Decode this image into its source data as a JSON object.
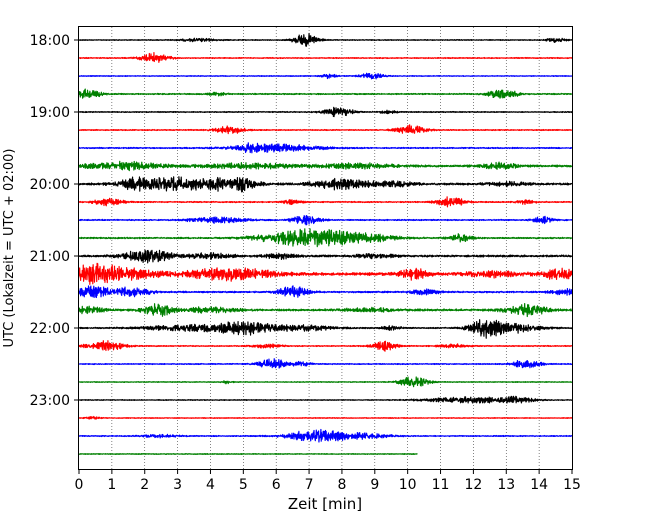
{
  "chart_data": {
    "type": "line",
    "subtype": "helicorder",
    "xlabel": "Zeit  [min]",
    "ylabel": "UTC (Lokalzeit = UTC + 02:00)",
    "xlim": [
      0,
      15
    ],
    "x_ticks": [
      0,
      1,
      2,
      3,
      4,
      5,
      6,
      7,
      8,
      9,
      10,
      11,
      12,
      13,
      14,
      15
    ],
    "x_gridlines": "dotted",
    "y_tick_labels": [
      "18:00",
      "19:00",
      "20:00",
      "21:00",
      "22:00",
      "23:00"
    ],
    "colors": [
      "#000000",
      "#ff0000",
      "#0000ff",
      "#008000"
    ],
    "rows": [
      {
        "time": "18:00",
        "color": "#000000",
        "base": 0.4,
        "end": 15,
        "bursts": [
          [
            6.9,
            0.25,
            7
          ],
          [
            3.6,
            0.4,
            1.5
          ],
          [
            14.5,
            0.2,
            2.5
          ]
        ]
      },
      {
        "time": "18:15",
        "color": "#ff0000",
        "base": 0.5,
        "end": 15,
        "bursts": [
          [
            2.3,
            0.3,
            5
          ]
        ]
      },
      {
        "time": "18:30",
        "color": "#0000ff",
        "base": 0.4,
        "end": 15,
        "bursts": [
          [
            7.6,
            0.15,
            2.5
          ],
          [
            8.9,
            0.25,
            3
          ]
        ]
      },
      {
        "time": "18:45",
        "color": "#008000",
        "base": 0.6,
        "end": 15,
        "bursts": [
          [
            0.3,
            0.25,
            5
          ],
          [
            12.9,
            0.3,
            5
          ],
          [
            4.2,
            0.2,
            1.5
          ]
        ]
      },
      {
        "time": "19:00",
        "color": "#000000",
        "base": 0.5,
        "end": 15,
        "bursts": [
          [
            7.9,
            0.3,
            5
          ],
          [
            9.4,
            0.2,
            1.5
          ]
        ]
      },
      {
        "time": "19:15",
        "color": "#ff0000",
        "base": 0.5,
        "end": 15,
        "bursts": [
          [
            4.6,
            0.3,
            4
          ],
          [
            10.1,
            0.3,
            5
          ]
        ]
      },
      {
        "time": "19:30",
        "color": "#0000ff",
        "base": 0.6,
        "end": 15,
        "bursts": [
          [
            6.0,
            0.9,
            4
          ],
          [
            5.2,
            0.2,
            3
          ]
        ]
      },
      {
        "time": "19:45",
        "color": "#008000",
        "base": 1.0,
        "end": 15,
        "bursts": [
          [
            1.3,
            0.8,
            4
          ],
          [
            5.2,
            1.0,
            2.5
          ],
          [
            8.5,
            0.8,
            2.5
          ],
          [
            12.8,
            0.4,
            3
          ]
        ]
      },
      {
        "time": "20:00",
        "color": "#000000",
        "base": 1.0,
        "end": 15,
        "bursts": [
          [
            3.0,
            0.9,
            6.5
          ],
          [
            1.7,
            0.3,
            4
          ],
          [
            4.2,
            0.2,
            4
          ],
          [
            5.0,
            0.3,
            7
          ],
          [
            8.0,
            0.6,
            5.5
          ],
          [
            9.6,
            0.4,
            2.5
          ],
          [
            13.0,
            0.4,
            2
          ]
        ]
      },
      {
        "time": "20:15",
        "color": "#ff0000",
        "base": 0.6,
        "end": 15,
        "bursts": [
          [
            0.9,
            0.3,
            4
          ],
          [
            6.5,
            0.2,
            2.5
          ],
          [
            11.3,
            0.3,
            5
          ],
          [
            13.6,
            0.2,
            2
          ]
        ]
      },
      {
        "time": "20:30",
        "color": "#0000ff",
        "base": 0.6,
        "end": 15,
        "bursts": [
          [
            4.2,
            0.6,
            3
          ],
          [
            6.9,
            0.3,
            5
          ],
          [
            14.1,
            0.2,
            3.5
          ]
        ]
      },
      {
        "time": "20:45",
        "color": "#008000",
        "base": 0.7,
        "end": 15,
        "bursts": [
          [
            6.8,
            0.9,
            8
          ],
          [
            8.4,
            0.8,
            5
          ],
          [
            11.6,
            0.25,
            4
          ]
        ]
      },
      {
        "time": "21:00",
        "color": "#000000",
        "base": 1.0,
        "end": 15,
        "bursts": [
          [
            2.1,
            0.5,
            7
          ],
          [
            4.0,
            0.5,
            2.5
          ],
          [
            6.1,
            0.3,
            2.5
          ],
          [
            9.0,
            0.4,
            2
          ]
        ]
      },
      {
        "time": "21:15",
        "color": "#ff0000",
        "base": 1.5,
        "end": 15,
        "bursts": [
          [
            0.3,
            0.6,
            9
          ],
          [
            4.6,
            0.9,
            6
          ],
          [
            1.5,
            0.8,
            4
          ],
          [
            10.2,
            0.3,
            5
          ],
          [
            14.6,
            0.4,
            5
          ],
          [
            12.5,
            0.5,
            3
          ]
        ]
      },
      {
        "time": "21:30",
        "color": "#0000ff",
        "base": 0.8,
        "end": 15,
        "bursts": [
          [
            0.4,
            0.4,
            6
          ],
          [
            1.6,
            0.4,
            4.5
          ],
          [
            6.5,
            0.3,
            6
          ],
          [
            10.5,
            0.3,
            2.5
          ],
          [
            14.8,
            0.3,
            3
          ]
        ]
      },
      {
        "time": "21:45",
        "color": "#008000",
        "base": 1.0,
        "end": 15,
        "bursts": [
          [
            0.3,
            0.3,
            3.5
          ],
          [
            2.4,
            0.3,
            6
          ],
          [
            4.0,
            0.5,
            3
          ],
          [
            13.6,
            0.4,
            6.5
          ],
          [
            8.8,
            0.5,
            2
          ]
        ]
      },
      {
        "time": "22:00",
        "color": "#000000",
        "base": 0.7,
        "end": 15,
        "bursts": [
          [
            5.0,
            0.6,
            7
          ],
          [
            12.3,
            0.3,
            8
          ],
          [
            13.1,
            0.6,
            5
          ],
          [
            3.2,
            0.8,
            3
          ],
          [
            6.8,
            0.6,
            3
          ],
          [
            9.5,
            0.2,
            2
          ]
        ]
      },
      {
        "time": "22:15",
        "color": "#ff0000",
        "base": 0.5,
        "end": 15,
        "bursts": [
          [
            0.8,
            0.4,
            5
          ],
          [
            9.3,
            0.25,
            5
          ],
          [
            11.4,
            0.3,
            2
          ],
          [
            5.7,
            0.3,
            2
          ]
        ]
      },
      {
        "time": "22:30",
        "color": "#0000ff",
        "base": 0.5,
        "end": 15,
        "bursts": [
          [
            5.9,
            0.3,
            5
          ],
          [
            13.6,
            0.3,
            4.5
          ],
          [
            6.8,
            0.2,
            2.5
          ]
        ]
      },
      {
        "time": "22:45",
        "color": "#008000",
        "base": 0.4,
        "end": 15,
        "bursts": [
          [
            10.2,
            0.3,
            6
          ],
          [
            4.5,
            0.1,
            1.5
          ]
        ]
      },
      {
        "time": "23:00",
        "color": "#000000",
        "base": 0.4,
        "end": 15,
        "bursts": [
          [
            12.0,
            1.0,
            3
          ],
          [
            13.4,
            0.3,
            2.5
          ]
        ]
      },
      {
        "time": "23:15",
        "color": "#ff0000",
        "base": 0.4,
        "end": 15,
        "bursts": [
          [
            0.4,
            0.15,
            1.5
          ]
        ]
      },
      {
        "time": "23:30",
        "color": "#0000ff",
        "base": 0.5,
        "end": 15,
        "bursts": [
          [
            7.2,
            0.6,
            6
          ],
          [
            2.5,
            0.4,
            1.5
          ],
          [
            8.6,
            0.6,
            2.5
          ]
        ]
      },
      {
        "time": "23:45",
        "color": "#008000",
        "base": 0.4,
        "end": 10.3,
        "bursts": []
      }
    ]
  }
}
